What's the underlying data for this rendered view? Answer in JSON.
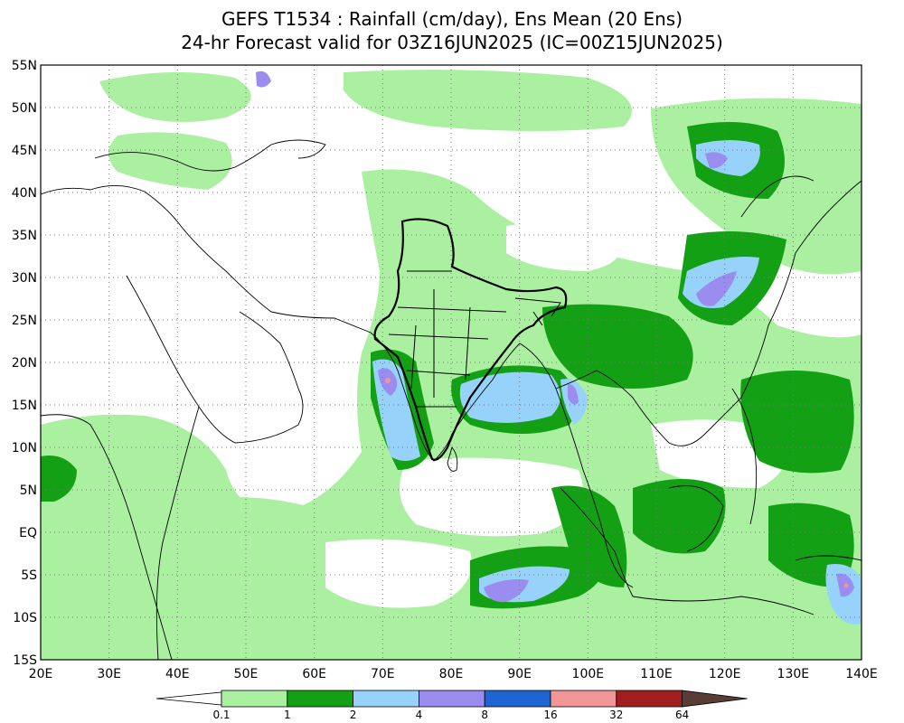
{
  "title": {
    "line1": "GEFS T1534 : Rainfall (cm/day), Ens Mean (20 Ens)",
    "line2": "24-hr Forecast valid for 03Z16JUN2025 (IC=00Z15JUN2025)"
  },
  "map": {
    "lon_range": [
      20,
      140
    ],
    "lat_range": [
      -15,
      55
    ],
    "lon_labels": [
      "20E",
      "30E",
      "40E",
      "50E",
      "60E",
      "70E",
      "80E",
      "90E",
      "100E",
      "110E",
      "120E",
      "130E",
      "140E"
    ],
    "lat_labels": [
      "55N",
      "50N",
      "45N",
      "40N",
      "35N",
      "30N",
      "25N",
      "20N",
      "15N",
      "10N",
      "5N",
      "EQ",
      "5S",
      "10S",
      "15S"
    ],
    "background_color": "#ffffff",
    "gridlines": "dotted"
  },
  "colorbar": {
    "labels": [
      "0.1",
      "1",
      "2",
      "4",
      "8",
      "16",
      "32",
      "64"
    ],
    "colors": [
      "#aaf0a0",
      "#14a014",
      "#96d2fa",
      "#9b8cf0",
      "#1e64d2",
      "#f09696",
      "#a01e1e",
      "#5a3c37"
    ]
  }
}
